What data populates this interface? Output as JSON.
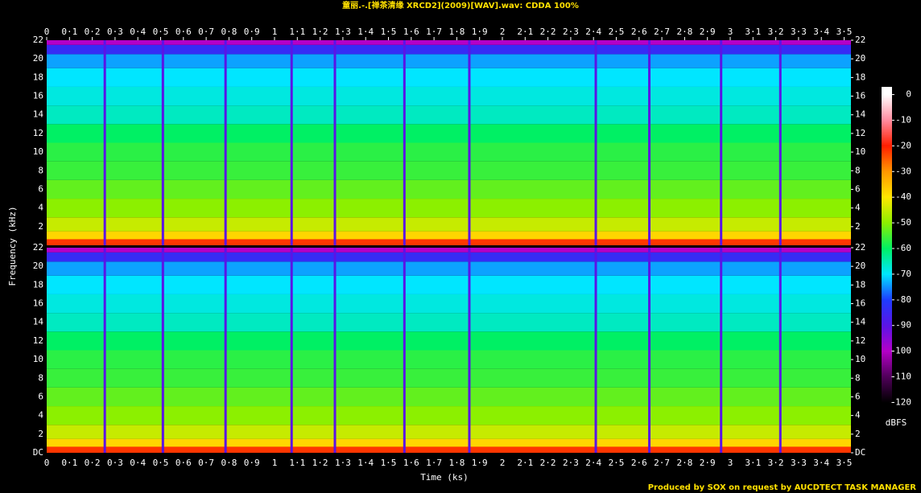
{
  "chart_data": {
    "type": "spectrogram",
    "title": "童丽.-.[禅茶清缘 XRCD2](2009)[WAV].wav: CDDA 100%",
    "x_label": "Time (ks)",
    "y_label": "Frequency (kHz)",
    "colorbar_label": "dBFS",
    "footer": "Produced by SOX on request by AUCDTECT TASK MANAGER",
    "xlim": [
      0,
      3.53
    ],
    "xticks": [
      0,
      {
        "value": 0.1,
        "label": "0·1"
      },
      {
        "value": 0.2,
        "label": "0·2"
      },
      {
        "value": 0.3,
        "label": "0·3"
      },
      {
        "value": 0.4,
        "label": "0·4"
      },
      {
        "value": 0.5,
        "label": "0·5"
      },
      {
        "value": 0.6,
        "label": "0·6"
      },
      {
        "value": 0.7,
        "label": "0·7"
      },
      {
        "value": 0.8,
        "label": "0·8"
      },
      {
        "value": 0.9,
        "label": "0·9"
      },
      1,
      {
        "value": 1.1,
        "label": "1·1"
      },
      {
        "value": 1.2,
        "label": "1·2"
      },
      {
        "value": 1.3,
        "label": "1·3"
      },
      {
        "value": 1.4,
        "label": "1·4"
      },
      {
        "value": 1.5,
        "label": "1·5"
      },
      {
        "value": 1.6,
        "label": "1·6"
      },
      {
        "value": 1.7,
        "label": "1·7"
      },
      {
        "value": 1.8,
        "label": "1·8"
      },
      {
        "value": 1.9,
        "label": "1·9"
      },
      2,
      {
        "value": 2.1,
        "label": "2·1"
      },
      {
        "value": 2.2,
        "label": "2·2"
      },
      {
        "value": 2.3,
        "label": "2·3"
      },
      {
        "value": 2.4,
        "label": "2·4"
      },
      {
        "value": 2.5,
        "label": "2·5"
      },
      {
        "value": 2.6,
        "label": "2·6"
      },
      {
        "value": 2.7,
        "label": "2·7"
      },
      {
        "value": 2.8,
        "label": "2·8"
      },
      {
        "value": 2.9,
        "label": "2·9"
      },
      3,
      {
        "value": 3.1,
        "label": "3·1"
      },
      {
        "value": 3.2,
        "label": "3·2"
      },
      {
        "value": 3.3,
        "label": "3·3"
      },
      {
        "value": 3.4,
        "label": "3·4"
      },
      {
        "value": 3.5,
        "label": "3·5"
      }
    ],
    "ylim": [
      0,
      22
    ],
    "frequencies": [
      0.3,
      1,
      2,
      4,
      6,
      8,
      10,
      12,
      14,
      16,
      18,
      20,
      21,
      22
    ],
    "channels": [
      {
        "yticks": [
          2,
          4,
          6,
          8,
          10,
          12,
          14,
          16,
          18,
          20,
          22
        ],
        "levels": [
          -22,
          -38,
          -45,
          -50,
          -53,
          -56,
          -57,
          -60,
          -66,
          -68,
          -70,
          -74,
          -84,
          -100
        ]
      },
      {
        "yticks": [
          {
            "value": 0,
            "label": "DC"
          },
          2,
          4,
          6,
          8,
          10,
          12,
          14,
          16,
          18,
          20,
          22
        ],
        "levels": [
          -22,
          -38,
          -45,
          -50,
          -53,
          -56,
          -57,
          -60,
          -66,
          -68,
          -70,
          -74,
          -84,
          -100
        ]
      }
    ],
    "track_breaks": [
      0.255,
      0.51,
      0.785,
      1.075,
      1.265,
      1.57,
      1.855,
      2.41,
      2.645,
      2.96,
      3.22
    ],
    "break_level": -90,
    "colorbar_lim": [
      -123,
      3
    ],
    "colorbar_ticks": [
      0,
      -10,
      -20,
      -30,
      -40,
      -50,
      -60,
      -70,
      -80,
      -90,
      -100,
      -110,
      -120
    ],
    "colormap": [
      {
        "value": -120,
        "color": "#000000"
      },
      {
        "value": -110,
        "color": "#50005a"
      },
      {
        "value": -100,
        "color": "#b400c8"
      },
      {
        "value": -90,
        "color": "#5a14e6"
      },
      {
        "value": -80,
        "color": "#1e3cff"
      },
      {
        "value": -70,
        "color": "#00e6ff"
      },
      {
        "value": -60,
        "color": "#00f064"
      },
      {
        "value": -50,
        "color": "#8cf000"
      },
      {
        "value": -40,
        "color": "#ffe600"
      },
      {
        "value": -30,
        "color": "#ff9600"
      },
      {
        "value": -20,
        "color": "#ff1e00"
      },
      {
        "value": -10,
        "color": "#ff8ca0"
      },
      {
        "value": 0,
        "color": "#ffffff"
      }
    ]
  }
}
